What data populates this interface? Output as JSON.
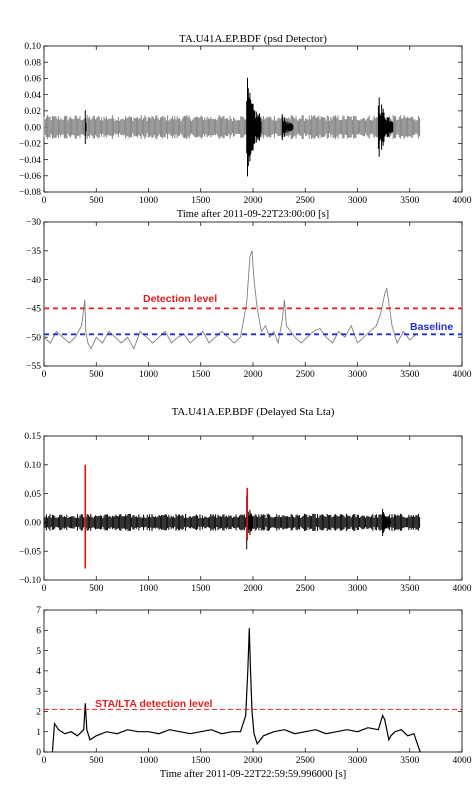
{
  "colors": {
    "gray_trace": "#808080",
    "black_trace": "#000000",
    "detection_red": "#e02020",
    "baseline_blue": "#2030d0",
    "pick_red": "#dd1010"
  },
  "chart_data": [
    {
      "type": "line",
      "title": "TA.U41A.EP.BDF (psd Detector)",
      "xlabel": "Time after 2011-09-22T23:00:00 [s]",
      "ylabel": "",
      "xlim": [
        0,
        4000
      ],
      "ylim": [
        -0.08,
        0.1
      ],
      "xticks": [
        0,
        500,
        1000,
        1500,
        2000,
        2500,
        3000,
        3500,
        4000
      ],
      "yticks": [
        -0.08,
        -0.06,
        -0.04,
        -0.02,
        0.0,
        0.02,
        0.04,
        0.06,
        0.08,
        0.1
      ],
      "ytick_labels": [
        "−0.08",
        "−0.06",
        "−0.04",
        "−0.02",
        "0.00",
        "0.02",
        "0.04",
        "0.06",
        "0.08",
        "0.10"
      ],
      "grid": false,
      "series": [
        {
          "kind": "waveform",
          "color": "gray",
          "x_range": [
            0,
            3600
          ],
          "noise_amplitude": 0.015,
          "bursts": [
            {
              "x": [
                395,
                410
              ],
              "amplitude": 0.035,
              "color": "black"
            },
            {
              "x": [
                1940,
                2080
              ],
              "amplitude": 0.07,
              "color": "black"
            },
            {
              "x": [
                2280,
                2380
              ],
              "amplitude": 0.02,
              "color": "black"
            },
            {
              "x": [
                3200,
                3340
              ],
              "amplitude": 0.05,
              "color": "black"
            }
          ]
        }
      ]
    },
    {
      "type": "line",
      "title": "",
      "xlabel": "",
      "ylabel": "",
      "xlim": [
        0,
        4000
      ],
      "ylim": [
        -55,
        -30
      ],
      "xticks": [
        0,
        500,
        1000,
        1500,
        2000,
        2500,
        3000,
        3500,
        4000
      ],
      "yticks": [
        -55,
        -50,
        -45,
        -40,
        -35,
        -30
      ],
      "ytick_labels": [
        "−55",
        "−50",
        "−45",
        "−40",
        "−35",
        "−30"
      ],
      "grid": false,
      "series": [
        {
          "kind": "psd",
          "color": "gray",
          "x": [
            0,
            60,
            120,
            180,
            240,
            300,
            360,
            390,
            400,
            420,
            450,
            500,
            560,
            620,
            680,
            740,
            800,
            860,
            920,
            980,
            1040,
            1100,
            1160,
            1220,
            1280,
            1340,
            1400,
            1460,
            1520,
            1580,
            1640,
            1700,
            1760,
            1820,
            1880,
            1940,
            1970,
            1990,
            2010,
            2040,
            2080,
            2120,
            2160,
            2200,
            2240,
            2280,
            2300,
            2320,
            2360,
            2400,
            2460,
            2520,
            2580,
            2640,
            2700,
            2760,
            2820,
            2880,
            2940,
            3000,
            3060,
            3120,
            3180,
            3220,
            3260,
            3280,
            3300,
            3330,
            3380,
            3440,
            3500,
            3560
          ],
          "y": [
            -50,
            -51,
            -49,
            -50,
            -51,
            -50,
            -48,
            -43.5,
            -49,
            -51,
            -52,
            -50,
            -51,
            -49,
            -50,
            -51,
            -50,
            -52,
            -49,
            -50,
            -51,
            -50,
            -49,
            -51,
            -50,
            -49.5,
            -51,
            -50,
            -49,
            -51,
            -50,
            -49,
            -50,
            -51,
            -50,
            -44,
            -36,
            -35,
            -40,
            -45,
            -49,
            -48,
            -50,
            -49,
            -51,
            -47,
            -43.5,
            -48,
            -49,
            -50,
            -51,
            -50,
            -49,
            -48.5,
            -50,
            -51,
            -49,
            -50,
            -48,
            -51,
            -50,
            -49,
            -48,
            -46,
            -42.5,
            -41.5,
            -44,
            -48,
            -51,
            -49,
            -50.5,
            -49.5
          ]
        }
      ],
      "hlines": [
        {
          "y": -45,
          "label": "Detection level",
          "color": "red",
          "style": "dashed"
        },
        {
          "y": -49.5,
          "label": "Baseline",
          "color": "blue",
          "style": "dashed"
        }
      ]
    },
    {
      "type": "line",
      "title": "TA.U41A.EP.BDF (Delayed Sta Lta)",
      "xlabel": "",
      "ylabel": "",
      "xlim": [
        0,
        4000
      ],
      "ylim": [
        -0.1,
        0.15
      ],
      "xticks": [
        0,
        500,
        1000,
        1500,
        2000,
        2500,
        3000,
        3500,
        4000
      ],
      "yticks": [
        -0.1,
        -0.05,
        0.0,
        0.05,
        0.1,
        0.15
      ],
      "ytick_labels": [
        "−0.10",
        "−0.05",
        "0.00",
        "0.05",
        "0.10",
        "0.15"
      ],
      "grid": false,
      "series": [
        {
          "kind": "waveform",
          "color": "black",
          "x_range": [
            0,
            3600
          ],
          "noise_amplitude": 0.015,
          "bursts": [
            {
              "x": [
                1940,
                2000
              ],
              "amplitude": 0.06,
              "color": "black"
            },
            {
              "x": [
                3240,
                3320
              ],
              "amplitude": 0.025,
              "color": "black"
            }
          ]
        }
      ],
      "picks": [
        {
          "x": 395,
          "y_top": 0.1,
          "y_bottom": -0.08,
          "color": "red"
        },
        {
          "x": 1945,
          "y_top": 0.06,
          "y_bottom": -0.03,
          "color": "red"
        }
      ]
    },
    {
      "type": "line",
      "title": "",
      "xlabel": "Time after 2011-09-22T22:59:59.996000 [s]",
      "ylabel": "",
      "xlim": [
        0,
        4000
      ],
      "ylim": [
        0,
        7
      ],
      "xticks": [
        0,
        500,
        1000,
        1500,
        2000,
        2500,
        3000,
        3500,
        4000
      ],
      "yticks": [
        0,
        1,
        2,
        3,
        4,
        5,
        6,
        7
      ],
      "ytick_labels": [
        "0",
        "1",
        "2",
        "3",
        "4",
        "5",
        "6",
        "7"
      ],
      "grid": false,
      "series": [
        {
          "kind": "sta_lta",
          "color": "black",
          "x": [
            80,
            100,
            140,
            200,
            260,
            320,
            380,
            395,
            410,
            440,
            500,
            600,
            700,
            800,
            900,
            1000,
            1100,
            1200,
            1300,
            1400,
            1500,
            1600,
            1700,
            1800,
            1880,
            1930,
            1950,
            1965,
            1975,
            1990,
            2010,
            2040,
            2100,
            2200,
            2300,
            2400,
            2500,
            2600,
            2700,
            2800,
            2900,
            3000,
            3100,
            3200,
            3240,
            3260,
            3280,
            3300,
            3320,
            3360,
            3420,
            3480,
            3540,
            3600
          ],
          "y": [
            0,
            1.4,
            1.1,
            0.9,
            1.0,
            0.8,
            1.1,
            2.4,
            1.1,
            0.6,
            0.8,
            1.0,
            0.9,
            1.1,
            1.0,
            1.0,
            0.9,
            1.1,
            1.0,
            0.9,
            1.0,
            1.1,
            0.9,
            1.0,
            1.0,
            1.8,
            4.0,
            6.1,
            4.2,
            2.0,
            0.9,
            0.4,
            0.8,
            1.0,
            1.1,
            0.9,
            1.0,
            1.1,
            0.9,
            1.0,
            1.1,
            1.0,
            1.2,
            1.1,
            1.8,
            1.6,
            1.1,
            0.6,
            0.8,
            1.0,
            1.1,
            0.8,
            0.9,
            0
          ]
        }
      ],
      "hlines": [
        {
          "y": 2.1,
          "label": "STA/LTA detection level",
          "color": "red",
          "style": "dashed"
        }
      ]
    }
  ]
}
